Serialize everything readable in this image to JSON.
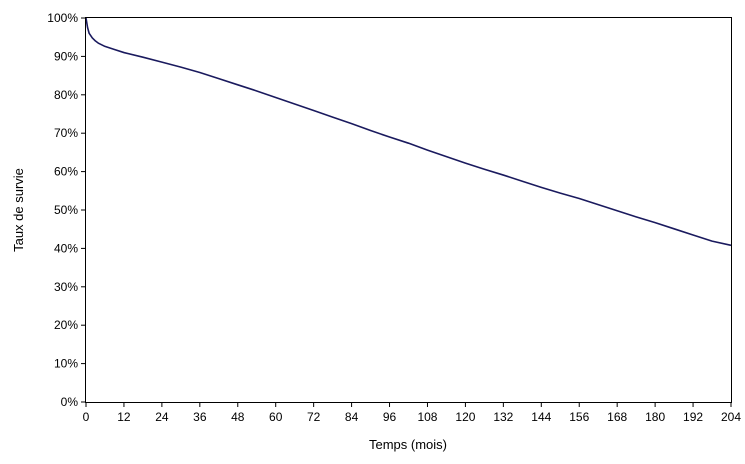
{
  "chart_data": {
    "type": "line",
    "title": "",
    "xlabel": "Temps (mois)",
    "ylabel": "Taux de survie",
    "xlim": [
      0,
      204
    ],
    "ylim": [
      0,
      100
    ],
    "grid": false,
    "x_ticks": [
      0,
      12,
      24,
      36,
      48,
      60,
      72,
      84,
      96,
      108,
      120,
      132,
      144,
      156,
      168,
      180,
      192,
      204
    ],
    "x_tick_labels": [
      "0",
      "12",
      "24",
      "36",
      "48",
      "60",
      "72",
      "84",
      "96",
      "108",
      "120",
      "132",
      "144",
      "156",
      "168",
      "180",
      "192",
      "204"
    ],
    "y_ticks": [
      0,
      10,
      20,
      30,
      40,
      50,
      60,
      70,
      80,
      90,
      100
    ],
    "y_tick_labels": [
      "0%",
      "10%",
      "20%",
      "30%",
      "40%",
      "50%",
      "60%",
      "70%",
      "80%",
      "90%",
      "100%"
    ],
    "series": [
      {
        "color": "#1a1a5e",
        "x": [
          0,
          0.5,
          1,
          2,
          3,
          4,
          6,
          9,
          12,
          18,
          24,
          30,
          36,
          42,
          48,
          54,
          60,
          66,
          72,
          78,
          84,
          90,
          96,
          102,
          108,
          114,
          120,
          126,
          132,
          138,
          144,
          150,
          156,
          162,
          168,
          174,
          180,
          186,
          192,
          198,
          204
        ],
        "y": [
          100,
          97.5,
          96,
          94.8,
          94,
          93.4,
          92.6,
          91.8,
          91,
          89.8,
          88.5,
          87.2,
          85.8,
          84.2,
          82.6,
          81,
          79.3,
          77.6,
          75.9,
          74.2,
          72.5,
          70.7,
          69,
          67.4,
          65.6,
          63.9,
          62.2,
          60.6,
          59.1,
          57.5,
          55.9,
          54.4,
          53,
          51.4,
          49.8,
          48.2,
          46.7,
          45.1,
          43.5,
          41.9,
          40.8
        ]
      }
    ]
  }
}
